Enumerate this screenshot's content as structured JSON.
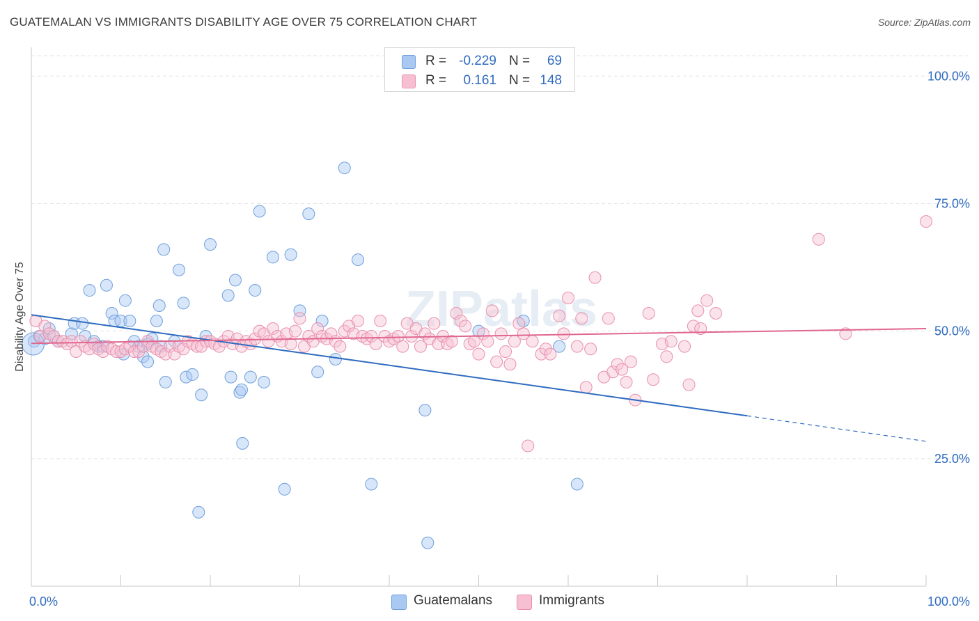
{
  "title": "GUATEMALAN VS IMMIGRANTS DISABILITY AGE OVER 75 CORRELATION CHART",
  "source": "Source: ZipAtlas.com",
  "watermark": "ZIPatlas",
  "legend": {
    "rows": [
      {
        "r_label": "R =",
        "r_value": "-0.229",
        "n_label": "N =",
        "n_value": "69",
        "color": "#a9c8f2",
        "border": "#6f9fdc"
      },
      {
        "r_label": "R =",
        "r_value": "0.161",
        "n_label": "N =",
        "n_value": "148",
        "color": "#f7c0d2",
        "border": "#e890ad"
      }
    ]
  },
  "bottom_legend": [
    {
      "label": "Guatemalans",
      "color": "#a9c8f2",
      "border": "#6f9fdc"
    },
    {
      "label": "Immigrants",
      "color": "#f7c0d2",
      "border": "#e890ad"
    }
  ],
  "chart_data": {
    "type": "scatter",
    "title": "GUATEMALAN VS IMMIGRANTS DISABILITY AGE OVER 75 CORRELATION CHART",
    "xlabel": "",
    "ylabel": "Disability Age Over 75",
    "xlim": [
      0,
      100
    ],
    "ylim": [
      0,
      104
    ],
    "x_tick_labels": [
      "0.0%",
      "100.0%"
    ],
    "y_ticks": [
      25,
      50,
      75,
      100
    ],
    "y_tick_labels": [
      "25.0%",
      "50.0%",
      "75.0%",
      "100.0%"
    ],
    "grid": true,
    "legend_position": "top-center",
    "series": [
      {
        "name": "Guatemalans",
        "color": "#6f9fdc",
        "fill": "#a9c8f2",
        "trend": {
          "x0": 0,
          "y0": 53.2,
          "x1": 80,
          "y1": 33.4,
          "dashed_to_x": 100,
          "dashed_to_y": 28.4,
          "color": "#2f6bc0"
        },
        "points": [
          [
            0.3,
            48
          ],
          [
            0.9,
            49
          ],
          [
            1.5,
            48.5
          ],
          [
            2,
            50.5
          ],
          [
            2.5,
            49
          ],
          [
            3,
            48
          ],
          [
            4.5,
            49.5
          ],
          [
            4.8,
            51.5
          ],
          [
            5.7,
            51.5
          ],
          [
            6,
            49
          ],
          [
            6.5,
            58
          ],
          [
            7,
            48
          ],
          [
            7.5,
            47
          ],
          [
            8,
            47
          ],
          [
            8.4,
            59
          ],
          [
            9,
            53.5
          ],
          [
            9.3,
            52
          ],
          [
            10,
            52
          ],
          [
            10.3,
            45.5
          ],
          [
            10.5,
            56
          ],
          [
            11,
            52
          ],
          [
            11.5,
            48
          ],
          [
            12,
            47
          ],
          [
            12.5,
            45
          ],
          [
            13,
            44
          ],
          [
            13.5,
            48.5
          ],
          [
            14,
            52
          ],
          [
            14.3,
            55
          ],
          [
            14.8,
            66
          ],
          [
            15,
            40
          ],
          [
            16,
            48
          ],
          [
            16.5,
            62
          ],
          [
            17,
            55.5
          ],
          [
            17.3,
            41
          ],
          [
            18,
            41.5
          ],
          [
            18.7,
            14.5
          ],
          [
            19,
            37.5
          ],
          [
            19.5,
            49
          ],
          [
            20,
            67
          ],
          [
            22,
            57
          ],
          [
            22.3,
            41
          ],
          [
            22.8,
            60
          ],
          [
            23.3,
            38
          ],
          [
            23.5,
            38.5
          ],
          [
            23.6,
            28
          ],
          [
            24.5,
            41
          ],
          [
            25,
            58
          ],
          [
            25.5,
            73.5
          ],
          [
            26,
            40
          ],
          [
            27,
            64.5
          ],
          [
            28.3,
            19
          ],
          [
            29,
            65
          ],
          [
            30,
            54
          ],
          [
            31,
            73
          ],
          [
            32,
            42
          ],
          [
            32.5,
            52
          ],
          [
            34,
            44.5
          ],
          [
            35,
            82
          ],
          [
            36.5,
            64
          ],
          [
            38,
            20
          ],
          [
            44,
            34.5
          ],
          [
            44.3,
            8.5
          ],
          [
            50,
            50
          ],
          [
            55,
            52
          ],
          [
            59,
            47
          ],
          [
            61,
            20
          ],
          [
            14.5,
            47
          ],
          [
            13,
            47.5
          ]
        ]
      },
      {
        "name": "Immigrants",
        "color": "#e890ad",
        "fill": "#f7c0d2",
        "trend": {
          "x0": 0,
          "y0": 47.6,
          "x1": 100,
          "y1": 50.5,
          "color": "#e0668f"
        },
        "points": [
          [
            0.5,
            52
          ],
          [
            1,
            49
          ],
          [
            1.5,
            51
          ],
          [
            2,
            49.5
          ],
          [
            2.5,
            49
          ],
          [
            3,
            48
          ],
          [
            3.5,
            48
          ],
          [
            4,
            47.5
          ],
          [
            4.5,
            48
          ],
          [
            5,
            46
          ],
          [
            5.5,
            48
          ],
          [
            6,
            47
          ],
          [
            6.5,
            46.5
          ],
          [
            7,
            47.5
          ],
          [
            7.5,
            46.5
          ],
          [
            8,
            46
          ],
          [
            8.5,
            47
          ],
          [
            9,
            46.5
          ],
          [
            9.5,
            46
          ],
          [
            10,
            46
          ],
          [
            10.5,
            46.5
          ],
          [
            11,
            47
          ],
          [
            11.5,
            46
          ],
          [
            12,
            46
          ],
          [
            12.5,
            47
          ],
          [
            13,
            48
          ],
          [
            13.5,
            47
          ],
          [
            14,
            46.5
          ],
          [
            14.5,
            46
          ],
          [
            15,
            45.5
          ],
          [
            15.5,
            47
          ],
          [
            16,
            45.5
          ],
          [
            16.5,
            47
          ],
          [
            17,
            46.5
          ],
          [
            17.5,
            48
          ],
          [
            18,
            47.5
          ],
          [
            18.5,
            47
          ],
          [
            19,
            47
          ],
          [
            19.5,
            48
          ],
          [
            20,
            48
          ],
          [
            20.5,
            47.5
          ],
          [
            21,
            47
          ],
          [
            21.5,
            48
          ],
          [
            22,
            49
          ],
          [
            22.5,
            47.5
          ],
          [
            23,
            48.5
          ],
          [
            23.5,
            47
          ],
          [
            24,
            48
          ],
          [
            24.5,
            47.5
          ],
          [
            25,
            48.5
          ],
          [
            25.5,
            50
          ],
          [
            26,
            49.5
          ],
          [
            26.5,
            48
          ],
          [
            27,
            50.5
          ],
          [
            27.5,
            49
          ],
          [
            28,
            48
          ],
          [
            28.5,
            49.5
          ],
          [
            29,
            47.5
          ],
          [
            29.5,
            50
          ],
          [
            30,
            52.5
          ],
          [
            30.5,
            47
          ],
          [
            31,
            49
          ],
          [
            31.5,
            48
          ],
          [
            32,
            50.5
          ],
          [
            32.5,
            49
          ],
          [
            33,
            48.5
          ],
          [
            33.5,
            49.5
          ],
          [
            34,
            48
          ],
          [
            34.5,
            47
          ],
          [
            35,
            50
          ],
          [
            35.5,
            51
          ],
          [
            36,
            49.5
          ],
          [
            36.5,
            52
          ],
          [
            37,
            49
          ],
          [
            37.5,
            48.5
          ],
          [
            38,
            49
          ],
          [
            38.5,
            47.5
          ],
          [
            39,
            52
          ],
          [
            39.5,
            49
          ],
          [
            40,
            48
          ],
          [
            40.5,
            48.5
          ],
          [
            41,
            49
          ],
          [
            41.5,
            47
          ],
          [
            42,
            51.5
          ],
          [
            42.5,
            49
          ],
          [
            43,
            50.5
          ],
          [
            43.5,
            47
          ],
          [
            44,
            49.5
          ],
          [
            44.5,
            48.5
          ],
          [
            45,
            51.5
          ],
          [
            45.5,
            47.5
          ],
          [
            46,
            49
          ],
          [
            46.5,
            47.5
          ],
          [
            47,
            48
          ],
          [
            47.5,
            53.5
          ],
          [
            48,
            52
          ],
          [
            48.5,
            51
          ],
          [
            49,
            47.5
          ],
          [
            49.5,
            48
          ],
          [
            50,
            45.5
          ],
          [
            50.5,
            49.5
          ],
          [
            51,
            48
          ],
          [
            51.5,
            54
          ],
          [
            52,
            44
          ],
          [
            52.5,
            49.5
          ],
          [
            53,
            46
          ],
          [
            53.5,
            43.5
          ],
          [
            54,
            48
          ],
          [
            54.5,
            51.5
          ],
          [
            55,
            49.5
          ],
          [
            56,
            48
          ],
          [
            57,
            45.5
          ],
          [
            57.5,
            46.5
          ],
          [
            58,
            45.5
          ],
          [
            59,
            53
          ],
          [
            59.5,
            49.5
          ],
          [
            60,
            56.5
          ],
          [
            61,
            47
          ],
          [
            61.5,
            52.5
          ],
          [
            62,
            39
          ],
          [
            62.5,
            46.5
          ],
          [
            63,
            60.5
          ],
          [
            64,
            41
          ],
          [
            64.5,
            52.5
          ],
          [
            65,
            42
          ],
          [
            65.5,
            43.5
          ],
          [
            66,
            42.5
          ],
          [
            66.5,
            40
          ],
          [
            67,
            44
          ],
          [
            67.5,
            36.5
          ],
          [
            69,
            53.5
          ],
          [
            69.5,
            40.5
          ],
          [
            70.5,
            47.5
          ],
          [
            71,
            45
          ],
          [
            71.5,
            48
          ],
          [
            73,
            47
          ],
          [
            73.5,
            39.5
          ],
          [
            74,
            51
          ],
          [
            74.5,
            54
          ],
          [
            74.8,
            50.5
          ],
          [
            75.5,
            56
          ],
          [
            76.5,
            53.5
          ],
          [
            88,
            68
          ],
          [
            91,
            49.5
          ],
          [
            100,
            71.5
          ],
          [
            55.5,
            27.5
          ]
        ]
      }
    ]
  }
}
